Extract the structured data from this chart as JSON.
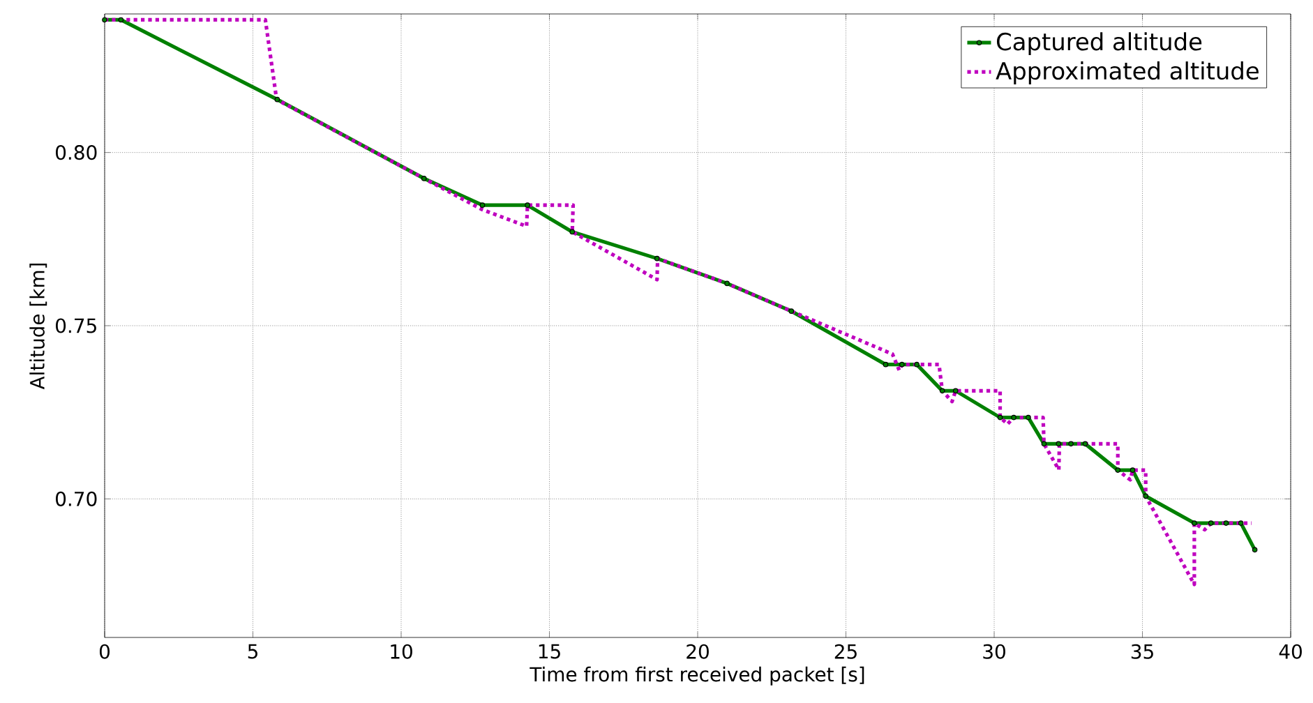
{
  "chart_data": {
    "type": "line",
    "xlabel": "Time from first received packet [s]",
    "ylabel": "Altitude [km]",
    "xlim": [
      0,
      40
    ],
    "ylim": [
      0.66,
      0.84
    ],
    "xticks": [
      0,
      5,
      10,
      15,
      20,
      25,
      30,
      35,
      40
    ],
    "yticks": [
      {
        "value": 0.7,
        "label": "0.70"
      },
      {
        "value": 0.75,
        "label": "0.75"
      },
      {
        "value": 0.8,
        "label": "0.80"
      }
    ],
    "grid": true,
    "legend": "top right",
    "series": [
      {
        "name": "Captured altitude",
        "color": "#008000",
        "marker": "circle",
        "line_style": "solid",
        "x": [
          0,
          0.55,
          5.82,
          10.77,
          12.74,
          14.26,
          15.77,
          18.63,
          20.99,
          23.16,
          26.34,
          26.89,
          27.39,
          28.25,
          28.7,
          30.2,
          30.66,
          31.15,
          31.68,
          32.17,
          32.59,
          33.07,
          34.17,
          34.67,
          35.11,
          36.75,
          37.31,
          37.82,
          38.32,
          38.79
        ],
        "values": [
          0.8383,
          0.8383,
          0.8153,
          0.7925,
          0.7848,
          0.7848,
          0.7771,
          0.7694,
          0.7622,
          0.7542,
          0.7388,
          0.7388,
          0.7388,
          0.7312,
          0.7312,
          0.7235,
          0.7235,
          0.7235,
          0.7159,
          0.7159,
          0.7159,
          0.7159,
          0.7083,
          0.7083,
          0.7008,
          0.693,
          0.693,
          0.693,
          0.693,
          0.6853
        ]
      },
      {
        "name": "Approximated altitude",
        "color": "#bf00bf",
        "marker": "none",
        "line_style": "dotted",
        "x": [
          0,
          5.42,
          5.8,
          10.77,
          12.74,
          14.23,
          14.26,
          15.8,
          15.77,
          18.63,
          18.65,
          20.99,
          23.16,
          26.57,
          26.8,
          26.89,
          28.14,
          28.25,
          28.58,
          28.7,
          30.2,
          30.2,
          30.45,
          30.66,
          31.65,
          31.68,
          32.18,
          32.2,
          34.17,
          34.17,
          34.59,
          34.67,
          35.11,
          35.11,
          36.75,
          36.75,
          37.1,
          37.31,
          38.68
        ],
        "values": [
          0.8383,
          0.8383,
          0.8153,
          0.7925,
          0.7835,
          0.7787,
          0.7848,
          0.7848,
          0.7771,
          0.7633,
          0.7694,
          0.7622,
          0.7542,
          0.7418,
          0.7371,
          0.7388,
          0.7388,
          0.7312,
          0.7281,
          0.7312,
          0.7312,
          0.7235,
          0.7216,
          0.7235,
          0.7235,
          0.7159,
          0.7084,
          0.7159,
          0.7159,
          0.7083,
          0.7055,
          0.7083,
          0.7083,
          0.7008,
          0.6753,
          0.693,
          0.6911,
          0.693,
          0.693
        ]
      }
    ]
  }
}
